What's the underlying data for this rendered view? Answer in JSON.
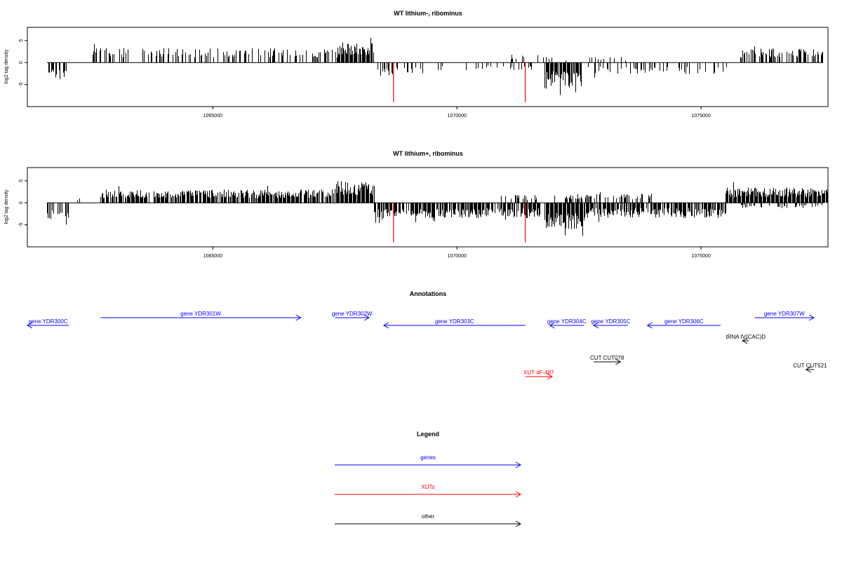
{
  "chart_data": [
    {
      "type": "bar",
      "title": "WT lithium-, ribominus",
      "ylabel": "log2 tag density",
      "xlim": [
        1061200,
        1077600
      ],
      "ylim": [
        -10,
        8
      ],
      "x_ticks": [
        1065000,
        1070000,
        1075000
      ],
      "y_ticks": [
        -5,
        0,
        5
      ],
      "series": [
        {
          "color": "#000000",
          "segments": [
            {
              "x": [
                1061600,
                1062050
              ],
              "sign": -1,
              "amp": 3.8,
              "density": 0.55
            },
            {
              "x": [
                1062450,
                1067550
              ],
              "sign": 1,
              "amp": 3.3,
              "density": 0.35
            },
            {
              "x": [
                1067550,
                1068300
              ],
              "sign": 1,
              "amp": 4.5,
              "density": 0.95
            },
            {
              "x": [
                1068350,
                1069300
              ],
              "sign": -1,
              "amp": 3.0,
              "density": 0.25
            },
            {
              "x": [
                1069300,
                1071800
              ],
              "sign": -1,
              "amp": 1.8,
              "density": 0.15
            },
            {
              "x": [
                1071000,
                1071700
              ],
              "sign": 1,
              "amp": 2.0,
              "density": 0.15
            },
            {
              "x": [
                1071800,
                1072550
              ],
              "sign": -1,
              "amp": 5.5,
              "density": 0.95
            },
            {
              "x": [
                1072550,
                1075550
              ],
              "sign": -1,
              "amp": 2.6,
              "density": 0.3
            },
            {
              "x": [
                1071700,
                1073500
              ],
              "sign": 1,
              "amp": 1.3,
              "density": 0.12
            },
            {
              "x": [
                1075800,
                1077500
              ],
              "sign": 1,
              "amp": 3.2,
              "density": 0.6
            }
          ]
        },
        {
          "name": "XUT spikes",
          "color": "#ff0000",
          "points": [
            {
              "x": 1068700,
              "y": -9.0
            },
            {
              "x": 1071400,
              "y": -9.0
            }
          ]
        }
      ]
    },
    {
      "type": "bar",
      "title": "WT lithium+, ribominus",
      "ylabel": "log2 tag density",
      "xlim": [
        1061200,
        1077600
      ],
      "ylim": [
        -10,
        8
      ],
      "x_ticks": [
        1065000,
        1070000,
        1075000
      ],
      "y_ticks": [
        -5,
        0,
        5
      ],
      "series": [
        {
          "color": "#000000",
          "segments": [
            {
              "x": [
                1061600,
                1062050
              ],
              "sign": -1,
              "amp": 3.8,
              "density": 0.6
            },
            {
              "x": [
                1062200,
                1062300
              ],
              "sign": 1,
              "amp": 1.5,
              "density": 0.2
            },
            {
              "x": [
                1062700,
                1067500
              ],
              "sign": 1,
              "amp": 3.0,
              "density": 0.85
            },
            {
              "x": [
                1067500,
                1068300
              ],
              "sign": 1,
              "amp": 5.0,
              "density": 1.0
            },
            {
              "x": [
                1068300,
                1071700
              ],
              "sign": -1,
              "amp": 3.5,
              "density": 0.85
            },
            {
              "x": [
                1070900,
                1071700
              ],
              "sign": 1,
              "amp": 1.8,
              "density": 0.35
            },
            {
              "x": [
                1071800,
                1072600
              ],
              "sign": -1,
              "amp": 6.0,
              "density": 1.0
            },
            {
              "x": [
                1072600,
                1075500
              ],
              "sign": -1,
              "amp": 3.4,
              "density": 0.85
            },
            {
              "x": [
                1072000,
                1074000
              ],
              "sign": 1,
              "amp": 2.0,
              "density": 0.4
            },
            {
              "x": [
                1075500,
                1077600
              ],
              "sign": 1,
              "amp": 3.5,
              "density": 1.0
            },
            {
              "x": [
                1075800,
                1077600
              ],
              "sign": -1,
              "amp": 1.2,
              "density": 0.3
            }
          ]
        },
        {
          "name": "XUT spikes",
          "color": "#ff0000",
          "points": [
            {
              "x": 1068700,
              "y": -9.0
            },
            {
              "x": 1071400,
              "y": -9.0
            }
          ]
        }
      ]
    }
  ],
  "annotations_title": "Annotations",
  "legend_title": "Legend",
  "colors": {
    "genes": "#0000ff",
    "xuts": "#ff0000",
    "other": "#000000"
  },
  "annotations": [
    {
      "id": "ann-ydr300c",
      "label": "gene YDR300C",
      "category": "genes",
      "strand": "-",
      "start": 1061000,
      "end": 1062050,
      "row": 1
    },
    {
      "id": "ann-ydr301w",
      "label": "gene YDR301W",
      "category": "genes",
      "strand": "+",
      "start": 1062700,
      "end": 1066800,
      "row": 0
    },
    {
      "id": "ann-ydr302w",
      "label": "gene YDR302W",
      "category": "genes",
      "strand": "+",
      "start": 1067500,
      "end": 1068200,
      "row": 0
    },
    {
      "id": "ann-ydr303c",
      "label": "gene YDR303C",
      "category": "genes",
      "strand": "-",
      "start": 1068500,
      "end": 1071400,
      "row": 1
    },
    {
      "id": "ann-ydr304c",
      "label": "gene YDR304C",
      "category": "genes",
      "strand": "-",
      "start": 1071900,
      "end": 1072600,
      "row": 1
    },
    {
      "id": "ann-ydr305c",
      "label": "gene YDR305C",
      "category": "genes",
      "strand": "-",
      "start": 1072800,
      "end": 1073500,
      "row": 1
    },
    {
      "id": "ann-ydr306c",
      "label": "gene YDR306C",
      "category": "genes",
      "strand": "-",
      "start": 1073900,
      "end": 1075400,
      "row": 1
    },
    {
      "id": "ann-ydr307w",
      "label": "gene YDR307W",
      "category": "genes",
      "strand": "+",
      "start": 1076100,
      "end": 1078000,
      "row": 0
    },
    {
      "id": "ann-trna",
      "label": "tRNA tV(CAC)D",
      "category": "other",
      "strand": "-",
      "start": 1075850,
      "end": 1075980,
      "row": 2
    },
    {
      "id": "ann-cut078",
      "label": "CUT CUT078",
      "category": "other",
      "strand": "+",
      "start": 1072800,
      "end": 1073350,
      "row": 3
    },
    {
      "id": "ann-cut521",
      "label": "CUT CUT521",
      "category": "other",
      "strand": "-",
      "start": 1077150,
      "end": 1077700,
      "row": 4
    },
    {
      "id": "ann-xut",
      "label": "XUT 4F-487",
      "category": "xuts",
      "strand": "+",
      "start": 1071400,
      "end": 1071950,
      "row": 5
    }
  ],
  "legend": [
    {
      "label": "genes",
      "category": "genes"
    },
    {
      "label": "XUTs",
      "category": "xuts"
    },
    {
      "label": "other",
      "category": "other"
    }
  ]
}
